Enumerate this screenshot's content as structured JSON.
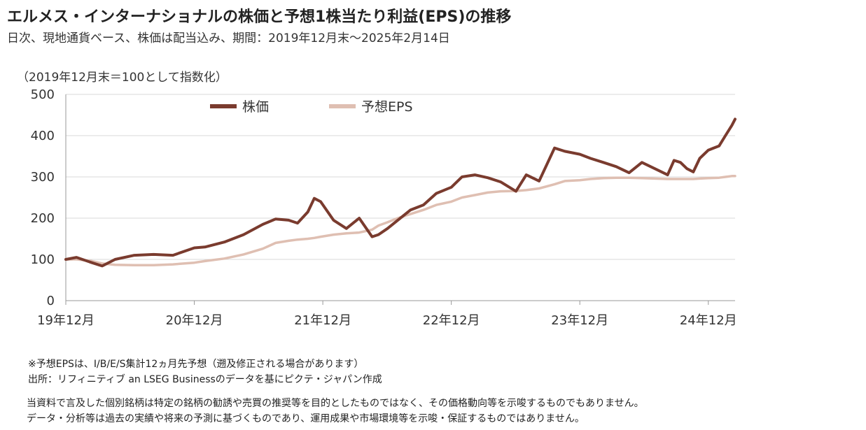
{
  "header": {
    "title": "エルメス・インターナショナルの株価と予想1株当たり利益(EPS)の推移",
    "subtitle": "日次、現地通貨ベース、株価は配当込み、期間：2019年12月末～2025年2月14日"
  },
  "chart_data": {
    "type": "line",
    "unit_label": "（2019年12月末＝100として指数化）",
    "ylim": [
      0,
      500
    ],
    "yticks": [
      "0",
      "100",
      "200",
      "300",
      "400",
      "500"
    ],
    "xlim": [
      2019.9167,
      2025.125
    ],
    "xticks": [
      {
        "x": 2019.9167,
        "label": "19年12月"
      },
      {
        "x": 2020.9167,
        "label": "20年12月"
      },
      {
        "x": 2021.9167,
        "label": "21年12月"
      },
      {
        "x": 2022.9167,
        "label": "22年12月"
      },
      {
        "x": 2023.9167,
        "label": "23年12月"
      },
      {
        "x": 2024.9167,
        "label": "24年12月"
      }
    ],
    "grid": true,
    "legend_position": "top-left",
    "series": [
      {
        "name": "株価",
        "color": "#7a3b2e",
        "x": [
          2019.9167,
          2020.0,
          2020.12,
          2020.2,
          2020.3,
          2020.45,
          2020.6,
          2020.75,
          2020.9167,
          2021.0,
          2021.15,
          2021.3,
          2021.45,
          2021.55,
          2021.65,
          2021.72,
          2021.8,
          2021.85,
          2021.9,
          2022.0,
          2022.1,
          2022.2,
          2022.3,
          2022.35,
          2022.42,
          2022.5,
          2022.6,
          2022.7,
          2022.8,
          2022.9167,
          2023.0,
          2023.1,
          2023.2,
          2023.3,
          2023.42,
          2023.5,
          2023.6,
          2023.72,
          2023.8,
          2023.9167,
          2024.0,
          2024.1,
          2024.2,
          2024.3,
          2024.4,
          2024.5,
          2024.6,
          2024.65,
          2024.7,
          2024.75,
          2024.8,
          2024.85,
          2024.9167,
          2025.0,
          2025.05,
          2025.1,
          2025.125
        ],
        "y": [
          100,
          105,
          92,
          84,
          100,
          110,
          112,
          110,
          128,
          130,
          142,
          160,
          185,
          198,
          195,
          188,
          215,
          248,
          240,
          195,
          175,
          200,
          155,
          160,
          175,
          195,
          220,
          232,
          260,
          275,
          300,
          305,
          298,
          288,
          265,
          305,
          290,
          370,
          362,
          355,
          345,
          335,
          325,
          310,
          335,
          320,
          305,
          340,
          335,
          320,
          312,
          345,
          365,
          375,
          400,
          425,
          440
        ]
      },
      {
        "name": "予想EPS",
        "color": "#dfbfb2",
        "x": [
          2019.9167,
          2020.0,
          2020.12,
          2020.2,
          2020.3,
          2020.45,
          2020.6,
          2020.75,
          2020.9167,
          2021.0,
          2021.15,
          2021.3,
          2021.45,
          2021.55,
          2021.65,
          2021.72,
          2021.8,
          2021.85,
          2021.9,
          2022.0,
          2022.1,
          2022.2,
          2022.3,
          2022.35,
          2022.42,
          2022.5,
          2022.6,
          2022.7,
          2022.8,
          2022.9167,
          2023.0,
          2023.1,
          2023.2,
          2023.3,
          2023.42,
          2023.5,
          2023.6,
          2023.72,
          2023.8,
          2023.9167,
          2024.0,
          2024.1,
          2024.2,
          2024.3,
          2024.4,
          2024.5,
          2024.6,
          2024.65,
          2024.7,
          2024.75,
          2024.8,
          2024.85,
          2024.9167,
          2025.0,
          2025.05,
          2025.1,
          2025.125
        ],
        "y": [
          100,
          100,
          96,
          90,
          87,
          86,
          86,
          88,
          92,
          96,
          102,
          112,
          126,
          140,
          145,
          148,
          150,
          152,
          155,
          160,
          163,
          165,
          172,
          182,
          190,
          200,
          210,
          220,
          232,
          240,
          250,
          256,
          262,
          265,
          266,
          268,
          272,
          282,
          290,
          292,
          295,
          297,
          298,
          298,
          297,
          296,
          295,
          295,
          295,
          295,
          295,
          296,
          297,
          298,
          300,
          302,
          302
        ]
      }
    ]
  },
  "notes": {
    "source_line1": "※予想EPSは、I/B/E/S集計12ヵ月先予想（遡及修正される場合があります）",
    "source_line2": "出所：リフィニティブ an LSEG Businessのデータを基にピクテ・ジャパン作成"
  },
  "disclaimer": {
    "line1": "当資料で言及した個別銘柄は特定の銘柄の勧誘や売買の推奨等を目的としたものではなく、その価格動向等を示唆するものでもありません。",
    "line2": "データ・分析等は過去の実績や将来の予測に基づくものであり、運用成果や市場環境等を示唆・保証するものではありません。"
  }
}
